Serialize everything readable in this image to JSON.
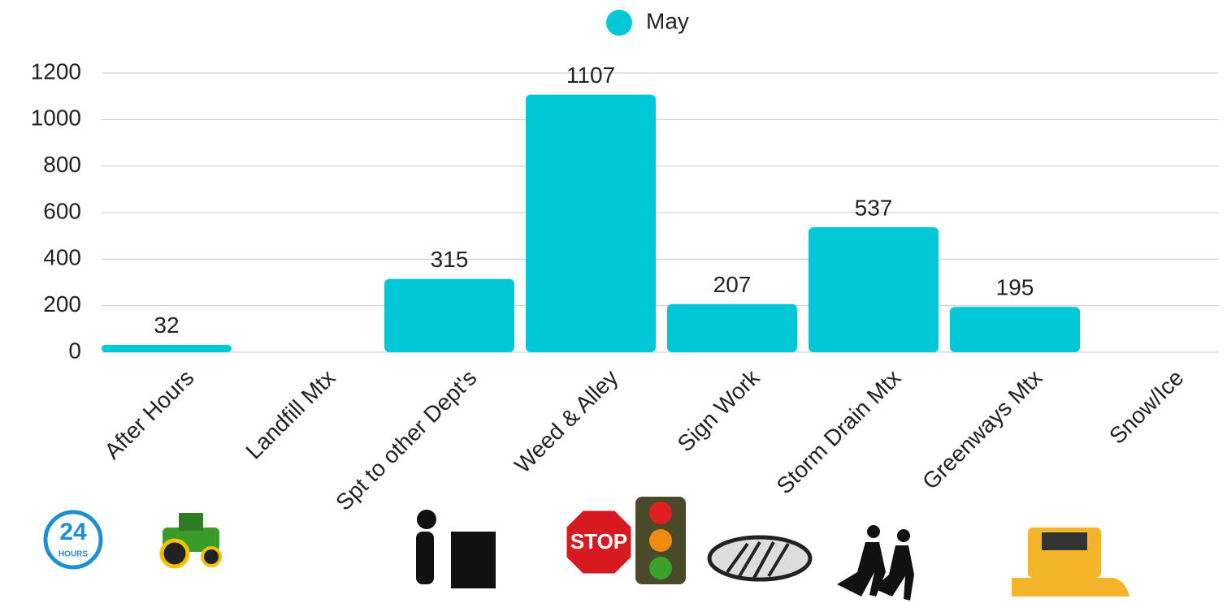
{
  "chart_data": {
    "type": "bar",
    "categories": [
      "After Hours",
      "Landfill Mtx",
      "Spt to other Dept's",
      "Weed & Alley",
      "Sign Work",
      "Storm Drain Mtx",
      "Greenways Mtx",
      "Snow/Ice"
    ],
    "series": [
      {
        "name": "May",
        "color": "#00c8d7",
        "values": [
          32,
          null,
          315,
          1107,
          207,
          537,
          195,
          null
        ]
      }
    ],
    "ylim": [
      0,
      1200
    ],
    "yticks": [
      0,
      200,
      400,
      600,
      800,
      1000,
      1200
    ],
    "grid": true,
    "legend": "top",
    "annotations": [
      "24",
      "HOURS",
      "STOP"
    ]
  }
}
